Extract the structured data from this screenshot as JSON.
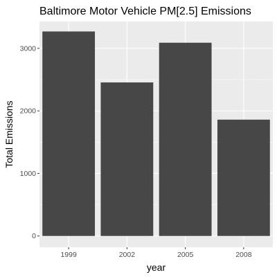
{
  "chart_data": {
    "type": "bar",
    "title": "Baltimore Motor Vehicle PM[2.5] Emissions",
    "xlabel": "year",
    "ylabel": "Total Emissions",
    "categories": [
      "1999",
      "2002",
      "2005",
      "2008"
    ],
    "values": [
      3270,
      2455,
      3090,
      1860
    ],
    "ylim": [
      -180,
      3430
    ],
    "yticks": [
      0,
      1000,
      2000,
      3000
    ],
    "ytick_labels": [
      "0",
      "1000",
      "2000",
      "3000"
    ],
    "grid": true,
    "legend": "none",
    "colors": {
      "bar": "#474747",
      "panel_background": "#ebebeb",
      "grid_major": "#ffffff",
      "tick_mark": "#333333"
    }
  }
}
